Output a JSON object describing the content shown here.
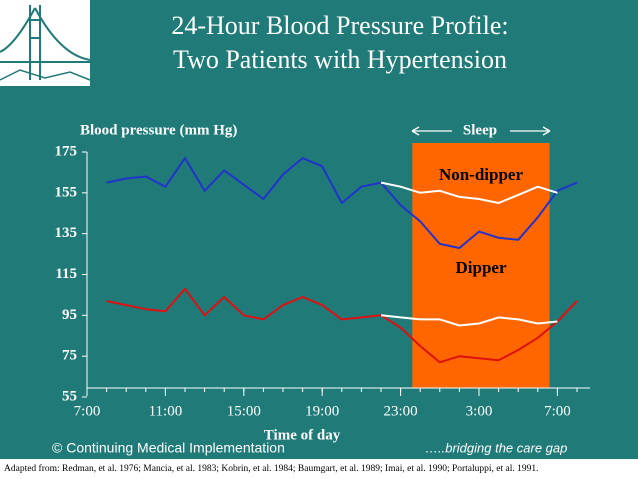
{
  "chart_data": {
    "type": "line",
    "title": [
      "24-Hour Blood Pressure Profile:",
      "Two Patients with Hypertension"
    ],
    "y_label": "Blood pressure (mm Hg)",
    "x_label": "Time of day",
    "xlim": [
      0,
      25.5
    ],
    "xticks": [
      {
        "value": 0,
        "label": "7:00"
      },
      {
        "value": 4,
        "label": "11:00"
      },
      {
        "value": 8,
        "label": "15:00"
      },
      {
        "value": 12,
        "label": "19:00"
      },
      {
        "value": 16,
        "label": "23:00"
      },
      {
        "value": 20,
        "label": "3:00"
      },
      {
        "value": 24,
        "label": "7:00"
      }
    ],
    "ylim": [
      55,
      175
    ],
    "yticks": [
      55,
      75,
      95,
      115,
      135,
      155,
      175
    ],
    "shaded_region": {
      "label": "Sleep",
      "x": [
        16.6,
        23.6
      ],
      "color": "#ff6600"
    },
    "series": [
      {
        "name": "Non-dipper",
        "color": "#2233cc",
        "x": [
          1,
          2,
          3,
          4,
          5,
          6,
          7,
          8,
          9,
          10,
          11,
          12,
          13,
          14,
          15,
          16,
          17,
          18,
          19,
          20,
          21,
          22,
          23,
          24,
          25
        ],
        "values": [
          160,
          162,
          163,
          158,
          172,
          156,
          166,
          159,
          152,
          164,
          172,
          168,
          150,
          158,
          160,
          149,
          141,
          130,
          128,
          136,
          133,
          132,
          143,
          156,
          160
        ]
      },
      {
        "name": "Dipper",
        "color": "#dd1111",
        "x": [
          1,
          2,
          3,
          4,
          5,
          6,
          7,
          8,
          9,
          10,
          11,
          12,
          13,
          14,
          15,
          16,
          17,
          18,
          19,
          20,
          21,
          22,
          23,
          24,
          25
        ],
        "values": [
          102,
          100,
          98,
          97,
          108,
          95,
          104,
          95,
          93,
          100,
          104,
          100,
          93,
          94,
          95,
          89,
          80,
          72,
          75,
          74,
          73,
          78,
          84,
          92,
          102
        ]
      },
      {
        "color": "#ffffff",
        "x": [
          15,
          16,
          17,
          18,
          19,
          20,
          21,
          22,
          23,
          24
        ],
        "values": [
          160,
          158,
          155,
          156,
          153,
          152,
          150,
          154,
          158,
          155
        ]
      },
      {
        "color": "#ffffff",
        "x": [
          15,
          16,
          17,
          18,
          19,
          20,
          21,
          22,
          23,
          24
        ],
        "values": [
          95,
          94,
          93,
          93,
          90,
          91,
          94,
          93,
          91,
          92
        ]
      }
    ]
  },
  "footer": {
    "left": "© Continuing Medical Implementation",
    "right": "…..bridging the care gap",
    "source": "Adapted from: Redman, et al. 1976; Mancia, et al. 1983; Kobrin, et al. 1984; Baumgart, et al. 1989; Imai, et al. 1990; Portaluppi, et al. 1991."
  }
}
